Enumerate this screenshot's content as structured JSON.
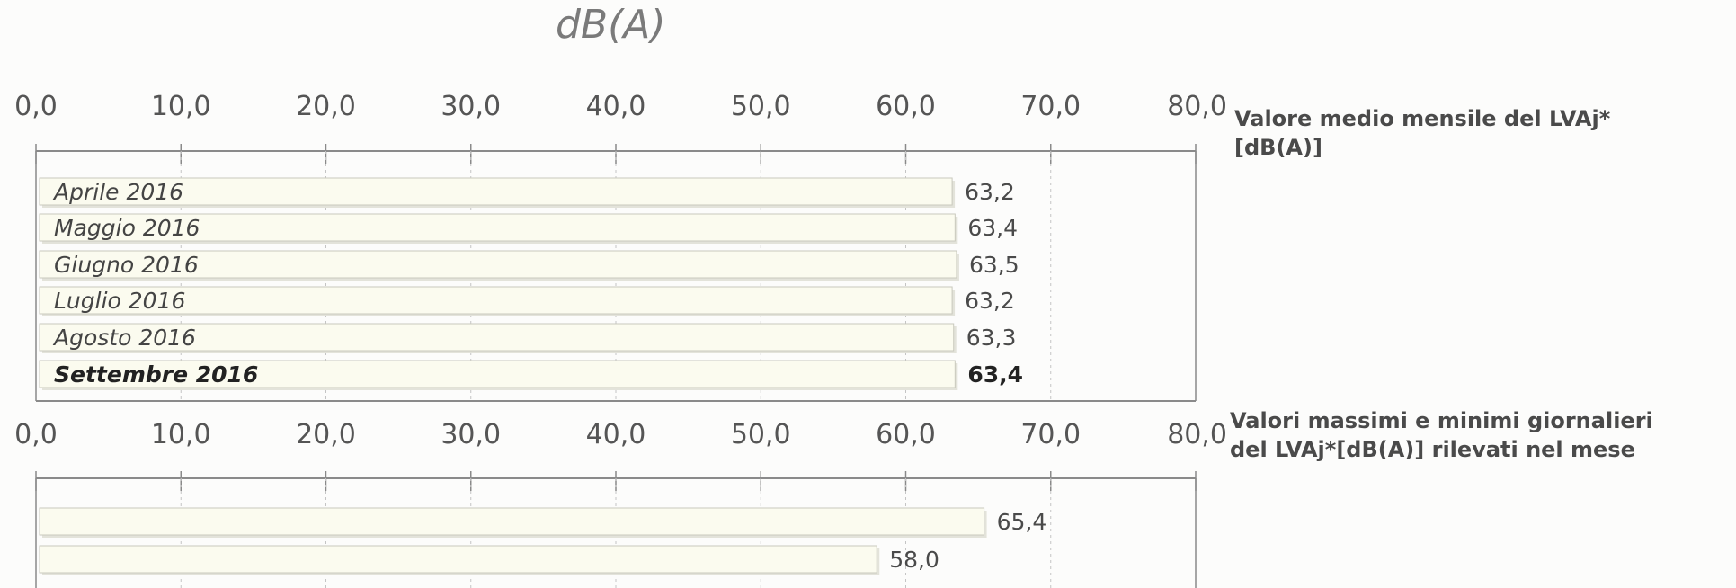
{
  "unit_title": "dB(A)",
  "chart_data": [
    {
      "type": "bar",
      "orientation": "horizontal",
      "title_lines": [
        "Valore medio mensile del LVAj*",
        "[dB(A)]"
      ],
      "x_ticks": [
        "0,0",
        "10,0",
        "20,0",
        "30,0",
        "40,0",
        "50,0",
        "60,0",
        "70,0",
        "80,0"
      ],
      "xlim": [
        0,
        80
      ],
      "categories": [
        "Aprile 2016",
        "Maggio 2016",
        "Giugno 2016",
        "Luglio 2016",
        "Agosto 2016",
        "Settembre 2016"
      ],
      "values": [
        63.2,
        63.4,
        63.5,
        63.2,
        63.3,
        63.4
      ],
      "value_labels": [
        "63,2",
        "63,4",
        "63,5",
        "63,2",
        "63,3",
        "63,4"
      ],
      "highlighted_category": "Settembre 2016"
    },
    {
      "type": "bar",
      "orientation": "horizontal",
      "title_lines": [
        "Valori massimi e minimi giornalieri",
        "del LVAj*[dB(A)] rilevati nel mese"
      ],
      "x_ticks": [
        "0,0",
        "10,0",
        "20,0",
        "30,0",
        "40,0",
        "50,0",
        "60,0",
        "70,0",
        "80,0"
      ],
      "xlim": [
        0,
        80
      ],
      "categories": [
        "",
        ""
      ],
      "values": [
        65.4,
        58.0
      ],
      "value_labels": [
        "65,4",
        "58,0"
      ]
    }
  ],
  "colors": {
    "bar_fill": "#fbfbef",
    "bar_edge": "#c9c9bd",
    "axis": "#8a8a8a"
  }
}
